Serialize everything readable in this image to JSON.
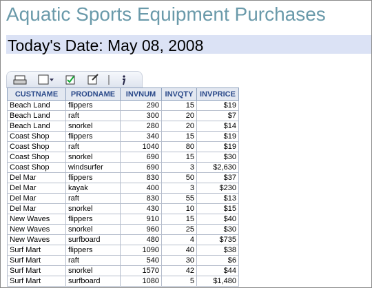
{
  "header": {
    "title": "Aquatic Sports Equipment Purchases",
    "date": "Today's Date: May 08, 2008"
  },
  "table": {
    "columns": [
      "CUSTNAME",
      "PRODNAME",
      "INVNUM",
      "INVQTY",
      "INVPRICE"
    ],
    "rows": [
      [
        "Beach Land",
        "flippers",
        "290",
        "15",
        "$19"
      ],
      [
        "Beach Land",
        "raft",
        "300",
        "20",
        "$7"
      ],
      [
        "Beach Land",
        "snorkel",
        "280",
        "20",
        "$14"
      ],
      [
        "Coast Shop",
        "flippers",
        "340",
        "15",
        "$19"
      ],
      [
        "Coast Shop",
        "raft",
        "1040",
        "80",
        "$19"
      ],
      [
        "Coast Shop",
        "snorkel",
        "690",
        "15",
        "$30"
      ],
      [
        "Coast Shop",
        "windsurfer",
        "690",
        "3",
        "$2,630"
      ],
      [
        "Del Mar",
        "flippers",
        "830",
        "50",
        "$37"
      ],
      [
        "Del Mar",
        "kayak",
        "400",
        "3",
        "$230"
      ],
      [
        "Del Mar",
        "raft",
        "830",
        "55",
        "$13"
      ],
      [
        "Del Mar",
        "snorkel",
        "430",
        "10",
        "$15"
      ],
      [
        "New Waves",
        "flippers",
        "910",
        "15",
        "$40"
      ],
      [
        "New Waves",
        "snorkel",
        "960",
        "25",
        "$30"
      ],
      [
        "New Waves",
        "surfboard",
        "480",
        "4",
        "$735"
      ],
      [
        "Surf Mart",
        "flippers",
        "1090",
        "40",
        "$38"
      ],
      [
        "Surf Mart",
        "raft",
        "540",
        "30",
        "$6"
      ],
      [
        "Surf Mart",
        "snorkel",
        "1570",
        "42",
        "$44"
      ],
      [
        "Surf Mart",
        "surfboard",
        "1080",
        "5",
        "$1,480"
      ]
    ]
  }
}
